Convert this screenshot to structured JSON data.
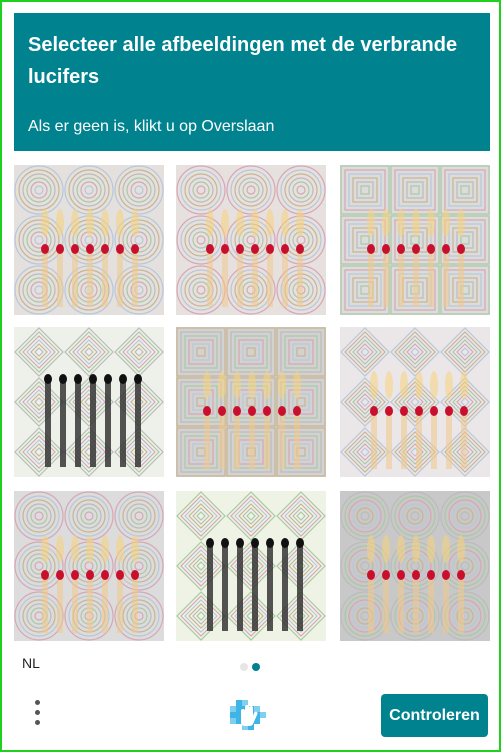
{
  "prompt": {
    "title": "Selecteer alle afbeeldingen met de verbrande lucifers",
    "subtitle": "Als er geen is, klikt u op Overslaan"
  },
  "colors": {
    "accent": "#00838f",
    "frame": "#1fd11f"
  },
  "language": "NL",
  "pagination": {
    "total": 2,
    "current": 2
  },
  "verify_button": "Controleren",
  "tiles": [
    {
      "pattern": "rings",
      "matches": "unburnt",
      "bg": "#e3e0dd"
    },
    {
      "pattern": "rings",
      "matches": "unburnt",
      "bg": "#e6e1df"
    },
    {
      "pattern": "squares",
      "matches": "unburnt",
      "bg": "#dcdcdc"
    },
    {
      "pattern": "diamonds",
      "matches": "burnt",
      "bg": "#eef0ea"
    },
    {
      "pattern": "squares",
      "matches": "unburnt",
      "bg": "#d2d2d2"
    },
    {
      "pattern": "diamonds",
      "matches": "unburnt",
      "bg": "#ebe6e8"
    },
    {
      "pattern": "rings",
      "matches": "unburnt",
      "bg": "#dcdcdc"
    },
    {
      "pattern": "diamonds",
      "matches": "burnt",
      "bg": "#eef3e5"
    },
    {
      "pattern": "rings",
      "matches": "unburnt",
      "bg": "#c8c8c8"
    }
  ]
}
